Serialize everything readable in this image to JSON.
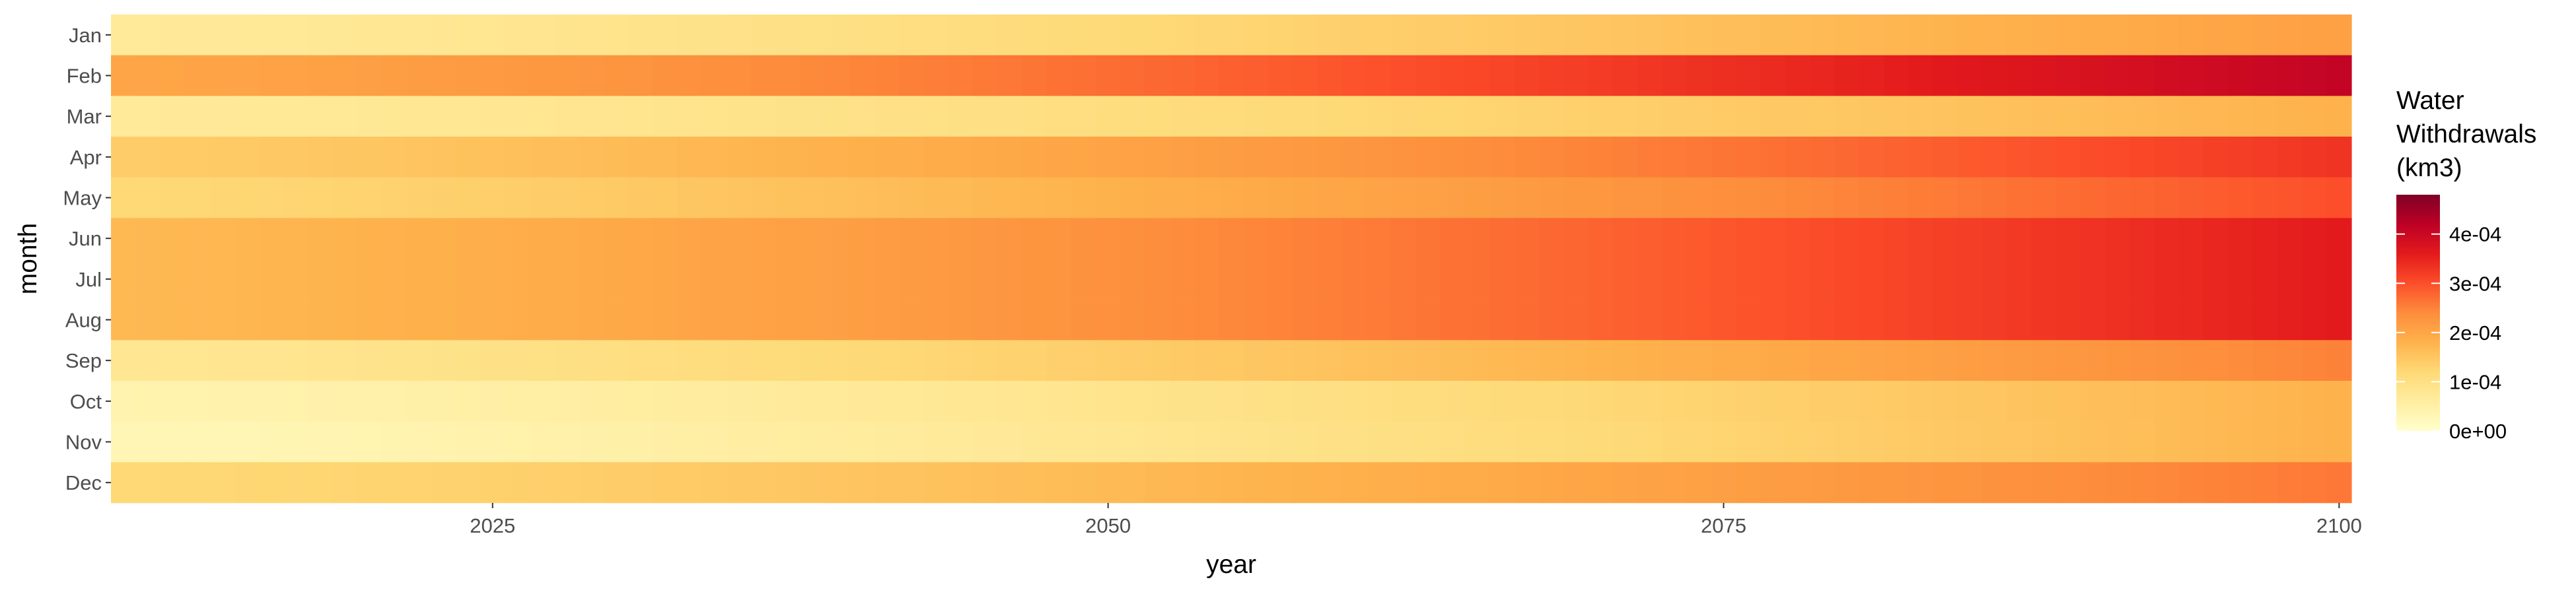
{
  "chart_data": {
    "type": "heatmap",
    "title": "",
    "xlabel": "year",
    "ylabel": "month",
    "x_start": 2010,
    "x_end": 2100,
    "xticks": [
      2025,
      2050,
      2075,
      2100
    ],
    "months": [
      "Jan",
      "Feb",
      "Mar",
      "Apr",
      "May",
      "Jun",
      "Jul",
      "Aug",
      "Sep",
      "Oct",
      "Nov",
      "Dec"
    ],
    "value_range": [
      0,
      0.00048
    ],
    "legend": {
      "title_lines": [
        "Water",
        "Withdrawals",
        "(km3)"
      ],
      "ticks": [
        {
          "value": 0,
          "label": "0e+00"
        },
        {
          "value": 0.0001,
          "label": "1e-04"
        },
        {
          "value": 0.0002,
          "label": "2e-04"
        },
        {
          "value": 0.0003,
          "label": "3e-04"
        },
        {
          "value": 0.0004,
          "label": "4e-04"
        }
      ],
      "placement": "right"
    },
    "palette": [
      "#FFFFCC",
      "#FFEDA0",
      "#FED976",
      "#FEB24C",
      "#FD8D3C",
      "#FC4E2A",
      "#E31A1C",
      "#BD0026",
      "#800026"
    ],
    "series": [
      {
        "month": "Jan",
        "start": 7e-05,
        "end": 0.00021
      },
      {
        "month": "Feb",
        "start": 0.0002,
        "end": 0.00041
      },
      {
        "month": "Mar",
        "start": 7e-05,
        "end": 0.00018
      },
      {
        "month": "Apr",
        "start": 0.00014,
        "end": 0.00033
      },
      {
        "month": "May",
        "start": 0.00012,
        "end": 0.0003
      },
      {
        "month": "Jun",
        "start": 0.00017,
        "end": 0.00036
      },
      {
        "month": "Jul",
        "start": 0.00017,
        "end": 0.00036
      },
      {
        "month": "Aug",
        "start": 0.00017,
        "end": 0.00036
      },
      {
        "month": "Sep",
        "start": 8e-05,
        "end": 0.00025
      },
      {
        "month": "Oct",
        "start": 4e-05,
        "end": 0.00018
      },
      {
        "month": "Nov",
        "start": 3e-05,
        "end": 0.00018
      },
      {
        "month": "Dec",
        "start": 0.00012,
        "end": 0.00026
      }
    ]
  }
}
